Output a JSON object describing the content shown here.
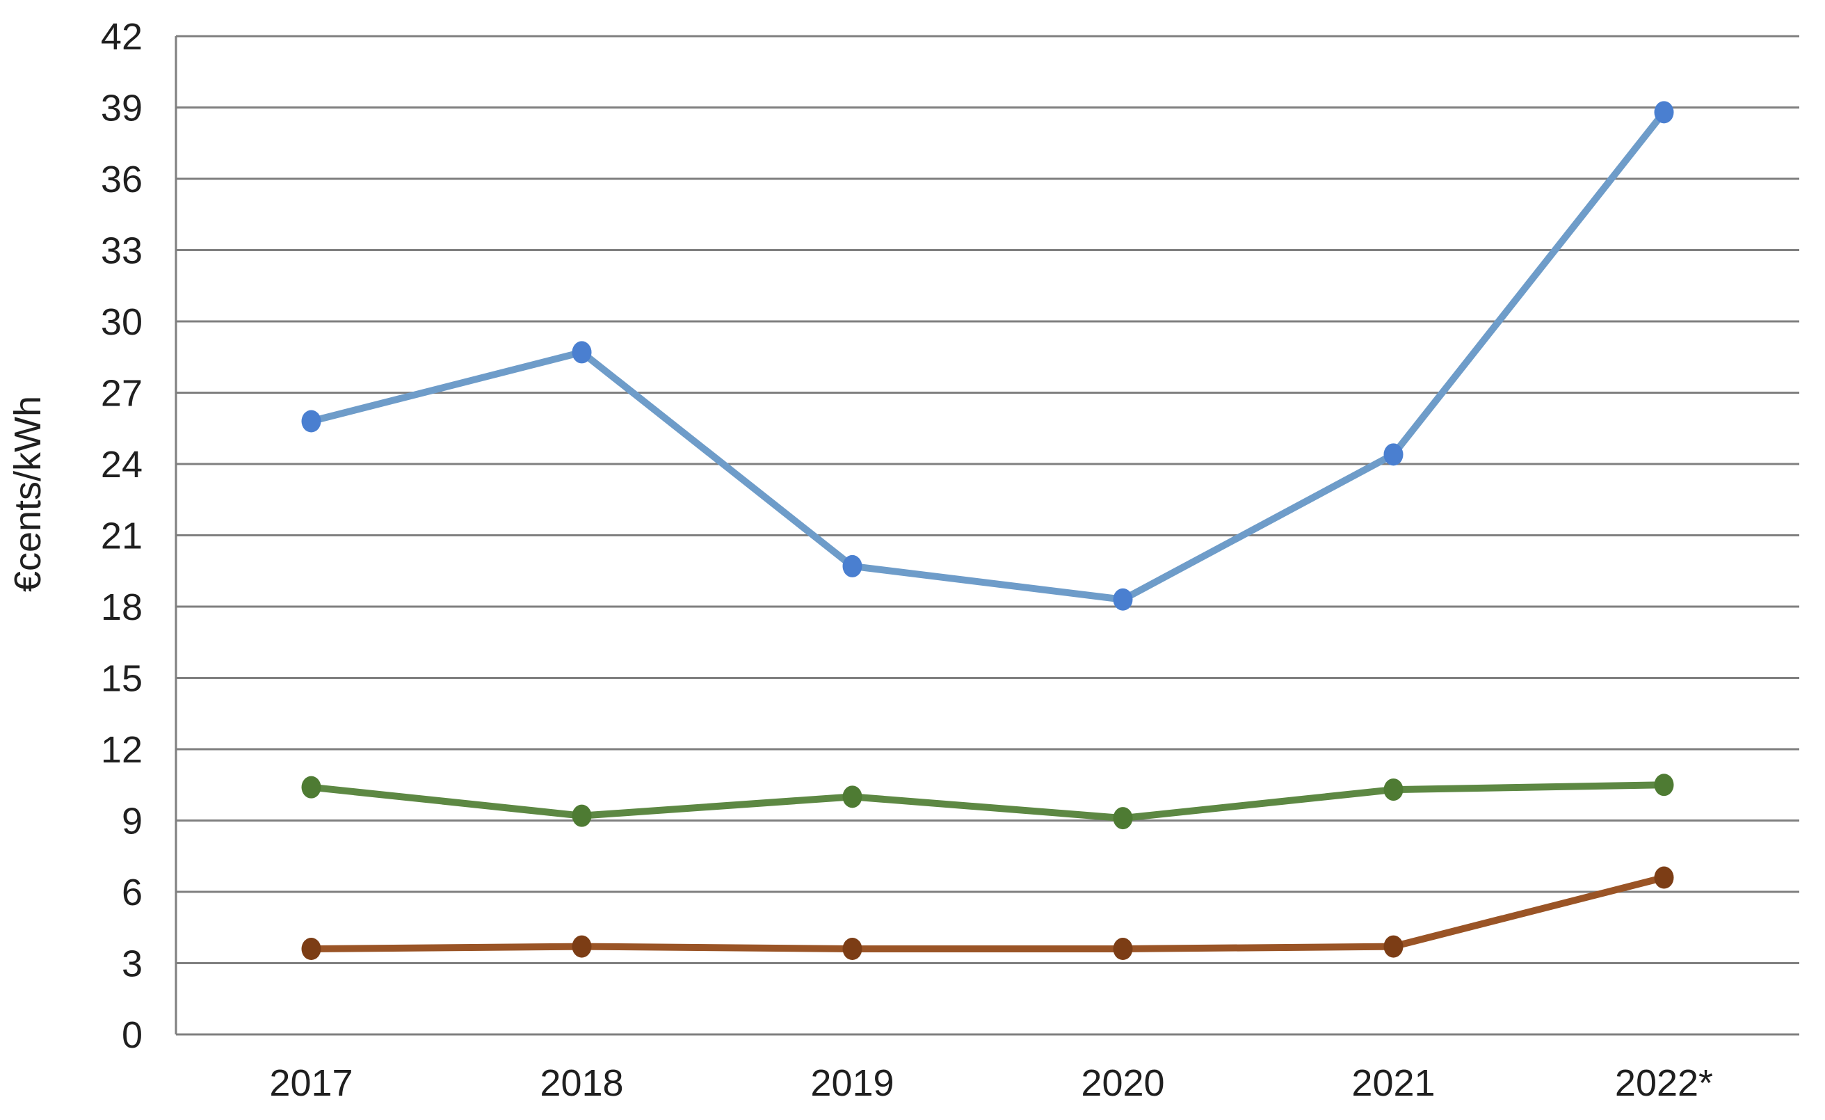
{
  "chart_data": {
    "type": "line",
    "ylabel": "€cents/kWh",
    "categories": [
      "2017",
      "2018",
      "2019",
      "2020",
      "2021",
      "2022*"
    ],
    "series": [
      {
        "name": "blue",
        "color": "#6e9cc9",
        "marker_color": "#4a7fd0",
        "values": [
          25.8,
          28.7,
          19.7,
          18.3,
          24.4,
          38.8
        ]
      },
      {
        "name": "green",
        "color": "#5d8843",
        "marker_color": "#4e7b33",
        "values": [
          10.4,
          9.2,
          10.0,
          9.1,
          10.3,
          10.5
        ]
      },
      {
        "name": "brown",
        "color": "#9a5426",
        "marker_color": "#7c3d15",
        "values": [
          3.6,
          3.7,
          3.6,
          3.6,
          3.7,
          6.6
        ]
      }
    ],
    "ylim": [
      0,
      42
    ],
    "ytick_step": 3,
    "y_tick_labels": [
      "0",
      "3",
      "6",
      "9",
      "12",
      "15",
      "18",
      "21",
      "24",
      "27",
      "30",
      "33",
      "36",
      "39",
      "42"
    ],
    "grid": "horizontal",
    "legend": "none",
    "axis_color": "#7f7f7f",
    "text_color": "#1f1f1f",
    "background_color": "#ffffff"
  }
}
